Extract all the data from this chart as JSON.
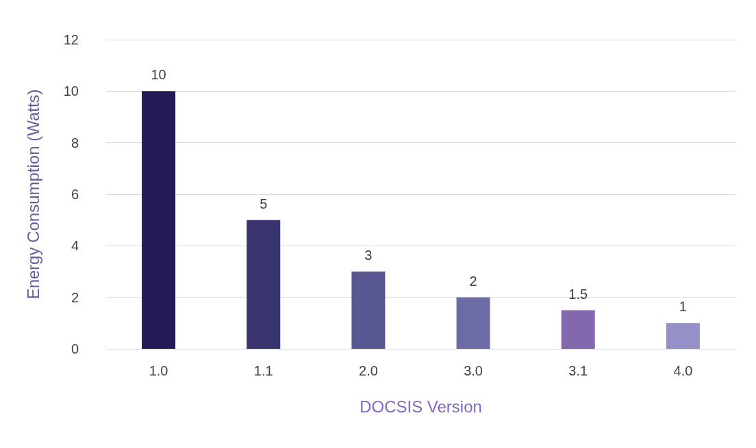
{
  "chart_data": {
    "type": "bar",
    "xlabel": "DOCSIS Version",
    "ylabel": "Energy Consumption (Watts)",
    "categories": [
      "1.0",
      "1.1",
      "2.0",
      "3.0",
      "3.1",
      "4.0"
    ],
    "values": [
      10,
      5,
      3,
      2,
      1.5,
      1
    ],
    "colors": [
      "#221b58",
      "#38346e",
      "#585792",
      "#6b6ba6",
      "#8468ae",
      "#9490c8"
    ],
    "ylim": [
      0,
      12
    ],
    "yticks": [
      0,
      2,
      4,
      6,
      8,
      10,
      12
    ],
    "grid": "y",
    "data_labels": true
  }
}
